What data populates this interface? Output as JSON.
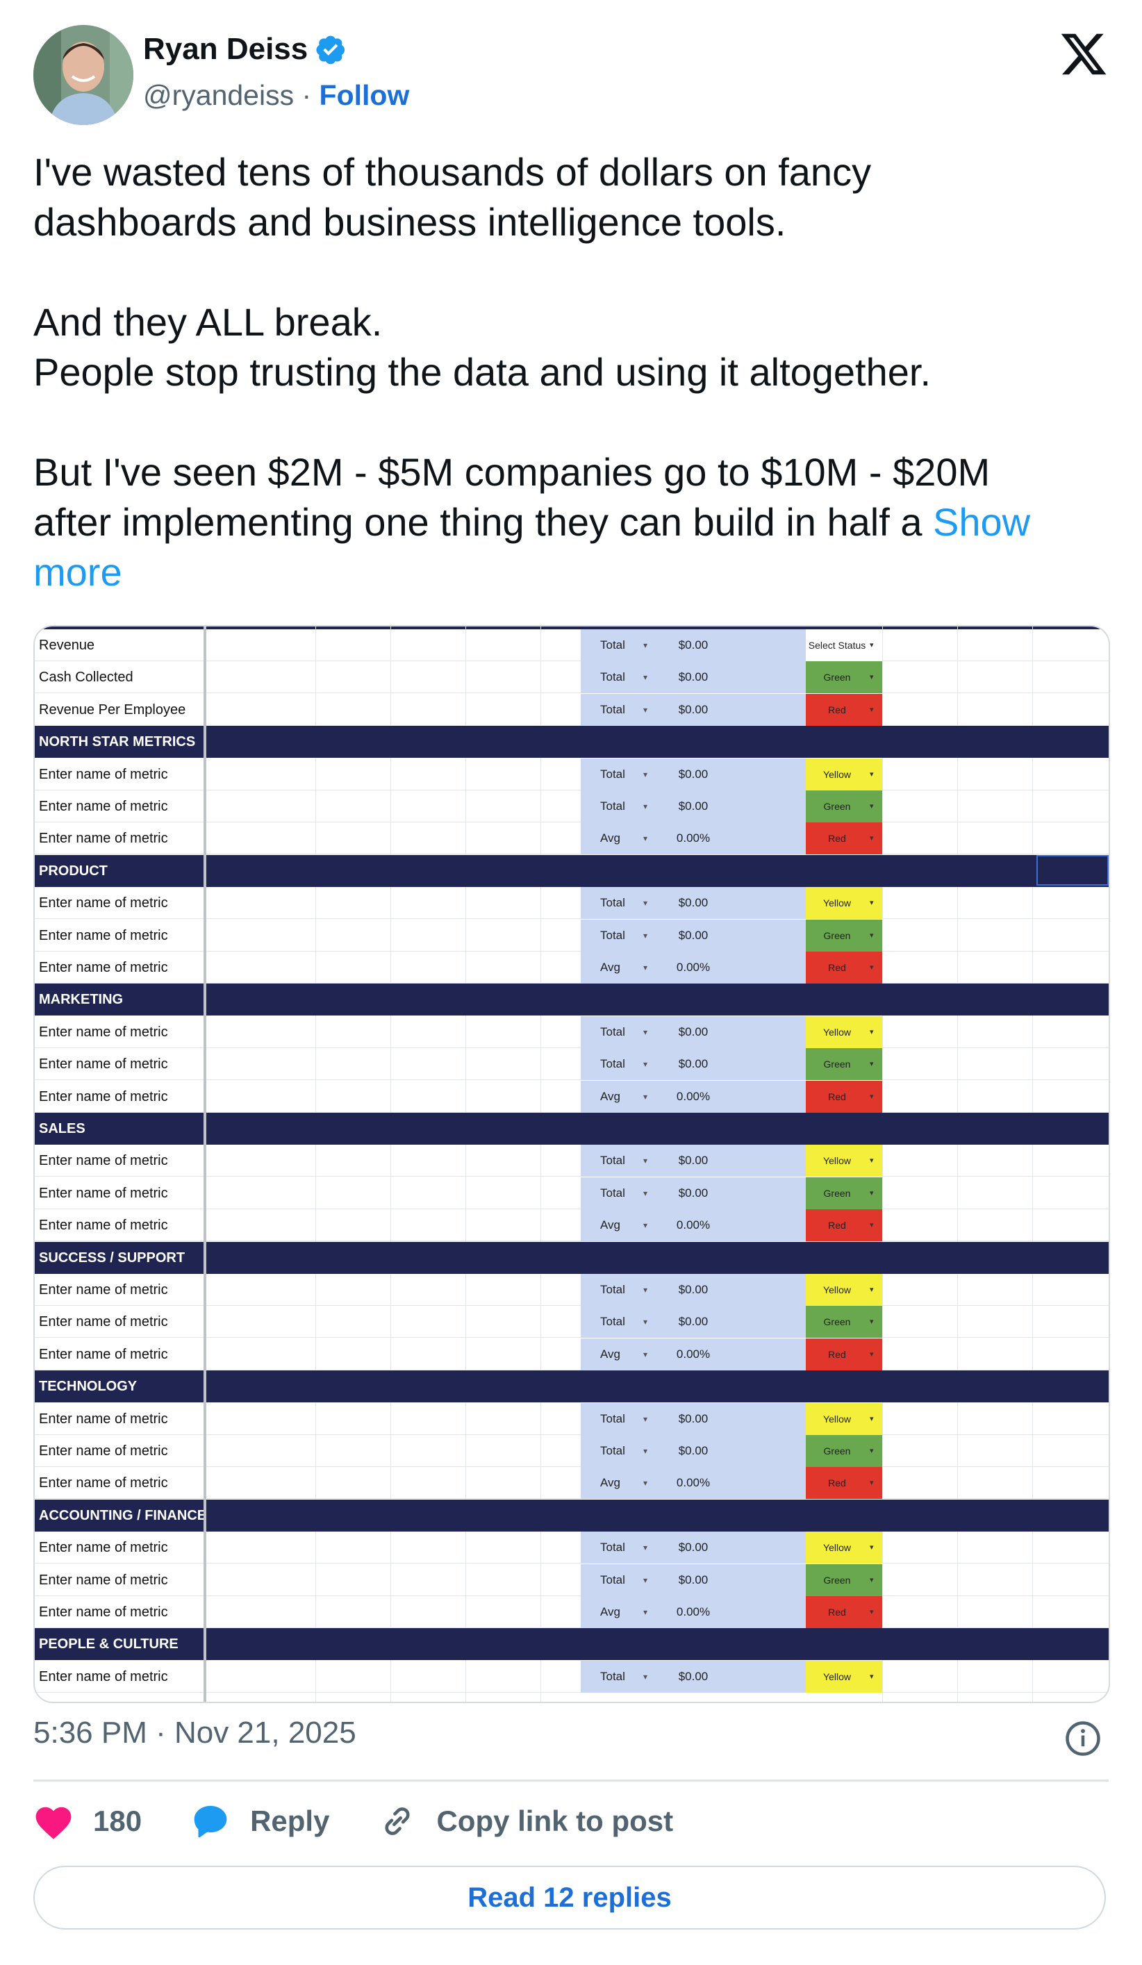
{
  "author": {
    "name": "Ryan Deiss",
    "handle": "@ryandeiss",
    "separator": " · ",
    "follow_label": "Follow"
  },
  "tweet": {
    "text": "I've wasted tens of thousands of dollars on fancy\ndashboards and business intelligence tools.\n\nAnd they ALL break.\nPeople stop trusting the data and using it altogether.\n\nBut I've seen $2M - $5M companies go to $10M - $20M\nafter implementing one thing they can build in half a ",
    "show_more": "Show\nmore"
  },
  "sheet": {
    "rows": [
      {
        "kind": "metric",
        "label": "Revenue",
        "type": "Total",
        "value": "$0.00",
        "status": "Select Status",
        "status_color": "select"
      },
      {
        "kind": "metric",
        "label": "Cash Collected",
        "type": "Total",
        "value": "$0.00",
        "status": "Green",
        "status_color": "green"
      },
      {
        "kind": "metric",
        "label": "Revenue Per Employee",
        "type": "Total",
        "value": "$0.00",
        "status": "Red",
        "status_color": "red"
      },
      {
        "kind": "section",
        "label": "NORTH STAR METRICS"
      },
      {
        "kind": "metric",
        "label": "Enter name of metric",
        "type": "Total",
        "value": "$0.00",
        "status": "Yellow",
        "status_color": "yellow"
      },
      {
        "kind": "metric",
        "label": "Enter name of metric",
        "type": "Total",
        "value": "$0.00",
        "status": "Green",
        "status_color": "green"
      },
      {
        "kind": "metric",
        "label": "Enter name of metric",
        "type": "Avg",
        "value": "0.00%",
        "status": "Red",
        "status_color": "red"
      },
      {
        "kind": "section",
        "label": "PRODUCT"
      },
      {
        "kind": "metric",
        "label": "Enter name of metric",
        "type": "Total",
        "value": "$0.00",
        "status": "Yellow",
        "status_color": "yellow"
      },
      {
        "kind": "metric",
        "label": "Enter name of metric",
        "type": "Total",
        "value": "$0.00",
        "status": "Green",
        "status_color": "green"
      },
      {
        "kind": "metric",
        "label": "Enter name of metric",
        "type": "Avg",
        "value": "0.00%",
        "status": "Red",
        "status_color": "red"
      },
      {
        "kind": "section",
        "label": "MARKETING"
      },
      {
        "kind": "metric",
        "label": "Enter name of metric",
        "type": "Total",
        "value": "$0.00",
        "status": "Yellow",
        "status_color": "yellow"
      },
      {
        "kind": "metric",
        "label": "Enter name of metric",
        "type": "Total",
        "value": "$0.00",
        "status": "Green",
        "status_color": "green"
      },
      {
        "kind": "metric",
        "label": "Enter name of metric",
        "type": "Avg",
        "value": "0.00%",
        "status": "Red",
        "status_color": "red"
      },
      {
        "kind": "section",
        "label": "SALES"
      },
      {
        "kind": "metric",
        "label": "Enter name of metric",
        "type": "Total",
        "value": "$0.00",
        "status": "Yellow",
        "status_color": "yellow"
      },
      {
        "kind": "metric",
        "label": "Enter name of metric",
        "type": "Total",
        "value": "$0.00",
        "status": "Green",
        "status_color": "green"
      },
      {
        "kind": "metric",
        "label": "Enter name of metric",
        "type": "Avg",
        "value": "0.00%",
        "status": "Red",
        "status_color": "red"
      },
      {
        "kind": "section",
        "label": "SUCCESS / SUPPORT"
      },
      {
        "kind": "metric",
        "label": "Enter name of metric",
        "type": "Total",
        "value": "$0.00",
        "status": "Yellow",
        "status_color": "yellow"
      },
      {
        "kind": "metric",
        "label": "Enter name of metric",
        "type": "Total",
        "value": "$0.00",
        "status": "Green",
        "status_color": "green"
      },
      {
        "kind": "metric",
        "label": "Enter name of metric",
        "type": "Avg",
        "value": "0.00%",
        "status": "Red",
        "status_color": "red"
      },
      {
        "kind": "section",
        "label": "TECHNOLOGY"
      },
      {
        "kind": "metric",
        "label": "Enter name of metric",
        "type": "Total",
        "value": "$0.00",
        "status": "Yellow",
        "status_color": "yellow"
      },
      {
        "kind": "metric",
        "label": "Enter name of metric",
        "type": "Total",
        "value": "$0.00",
        "status": "Green",
        "status_color": "green"
      },
      {
        "kind": "metric",
        "label": "Enter name of metric",
        "type": "Avg",
        "value": "0.00%",
        "status": "Red",
        "status_color": "red"
      },
      {
        "kind": "section",
        "label": "ACCOUNTING / FINANCE"
      },
      {
        "kind": "metric",
        "label": "Enter name of metric",
        "type": "Total",
        "value": "$0.00",
        "status": "Yellow",
        "status_color": "yellow"
      },
      {
        "kind": "metric",
        "label": "Enter name of metric",
        "type": "Total",
        "value": "$0.00",
        "status": "Green",
        "status_color": "green"
      },
      {
        "kind": "metric",
        "label": "Enter name of metric",
        "type": "Avg",
        "value": "0.00%",
        "status": "Red",
        "status_color": "red"
      },
      {
        "kind": "section",
        "label": "PEOPLE & CULTURE"
      },
      {
        "kind": "metric",
        "label": "Enter name of metric",
        "type": "Total",
        "value": "$0.00",
        "status": "Yellow",
        "status_color": "yellow"
      }
    ]
  },
  "meta": {
    "timestamp": "5:36 PM · Nov 21, 2025"
  },
  "actions": {
    "like_count": "180",
    "reply_label": "Reply",
    "copy_link_label": "Copy link to post",
    "read_replies_label": "Read 12 replies"
  },
  "colors": {
    "accent": "#1d9bf0",
    "like": "#f91880",
    "section_bg": "#1f2450",
    "cell_blue": "#c9d7f2"
  },
  "icons": [
    "verified-badge-icon",
    "x-logo-icon",
    "info-icon",
    "heart-icon",
    "reply-bubble-icon",
    "link-icon",
    "dropdown-arrow-icon"
  ]
}
